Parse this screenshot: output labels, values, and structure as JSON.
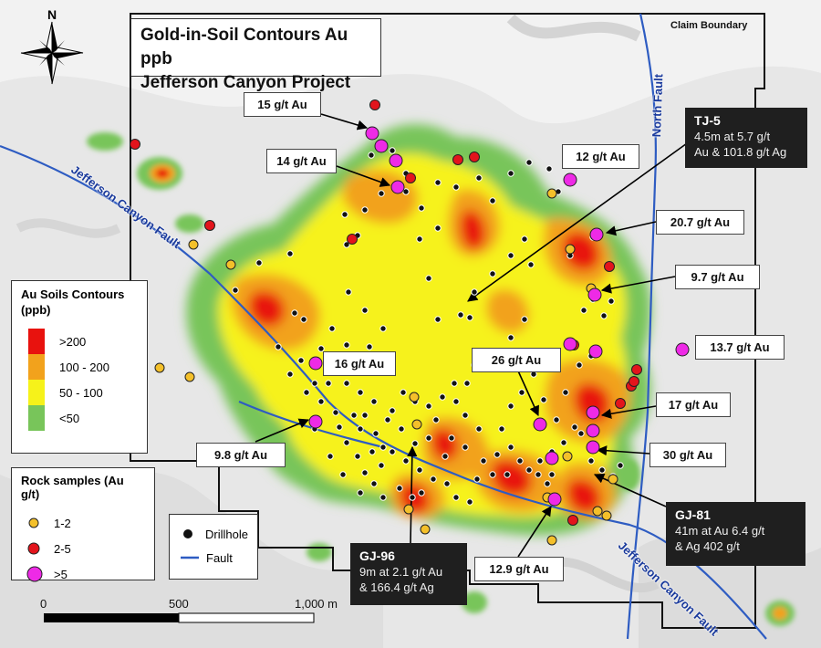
{
  "title_line1": "Gold-in-Soil Contours Au ppb",
  "title_line2": "Jefferson Canyon Project",
  "north_label": "N",
  "claim_boundary_label": "Claim Boundary",
  "faults": {
    "north": "North Fault",
    "jefferson_1": "Jefferson Canyon Fault",
    "jefferson_2": "Jefferson Canyon Fault"
  },
  "legend_soils": {
    "heading": "Au Soils Contours (ppb)",
    "items": [
      {
        "label": ">200",
        "color": "#e8120e"
      },
      {
        "label": "100 - 200",
        "color": "#f2a21c"
      },
      {
        "label": "50 - 100",
        "color": "#f6f21a"
      },
      {
        "label": "<50",
        "color": "#78c55a"
      }
    ]
  },
  "legend_rocks": {
    "heading": "Rock samples (Au g/t)",
    "items": [
      {
        "label": "1-2",
        "color": "#f4c02a"
      },
      {
        "label": "2-5",
        "color": "#e3141c"
      },
      {
        "label": ">5",
        "color": "#ee2ae6"
      }
    ]
  },
  "legend_other": {
    "drillhole": "Drillhole",
    "fault": "Fault"
  },
  "scale": {
    "zero": "0",
    "mid": "500",
    "end": "1,000 m"
  },
  "labels": {
    "l15": "15 g/t Au",
    "l14": "14 g/t Au",
    "l12": "12 g/t Au",
    "l207": "20.7 g/t Au",
    "l97": "9.7 g/t Au",
    "l137": "13.7 g/t Au",
    "l16": "16 g/t Au",
    "l26": "26 g/t Au",
    "l17": "17 g/t Au",
    "l98": "9.8 g/t Au",
    "l30": "30 g/t Au",
    "l129": "12.9 g/t Au"
  },
  "callouts": {
    "tj5": {
      "name": "TJ-5",
      "line1": "4.5m at 5.7 g/t",
      "line2": "Au & 101.8 g/t Ag"
    },
    "gj81": {
      "name": "GJ-81",
      "line1": "41m at Au 6.4 g/t",
      "line2": "& Ag 402 g/t"
    },
    "gj96": {
      "name": "GJ-96",
      "line1": "9m at 2.1 g/t Au",
      "line2": "& 166.4 g/t Ag"
    }
  }
}
